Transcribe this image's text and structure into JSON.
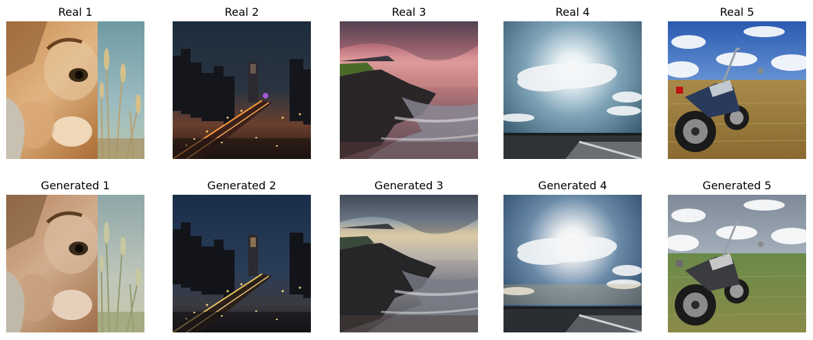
{
  "rows": [
    {
      "titles": [
        "Real 1",
        "Real 2",
        "Real 3",
        "Real 4",
        "Real 5"
      ]
    },
    {
      "titles": [
        "Generated 1",
        "Generated 2",
        "Generated 3",
        "Generated 4",
        "Generated 5"
      ]
    }
  ]
}
